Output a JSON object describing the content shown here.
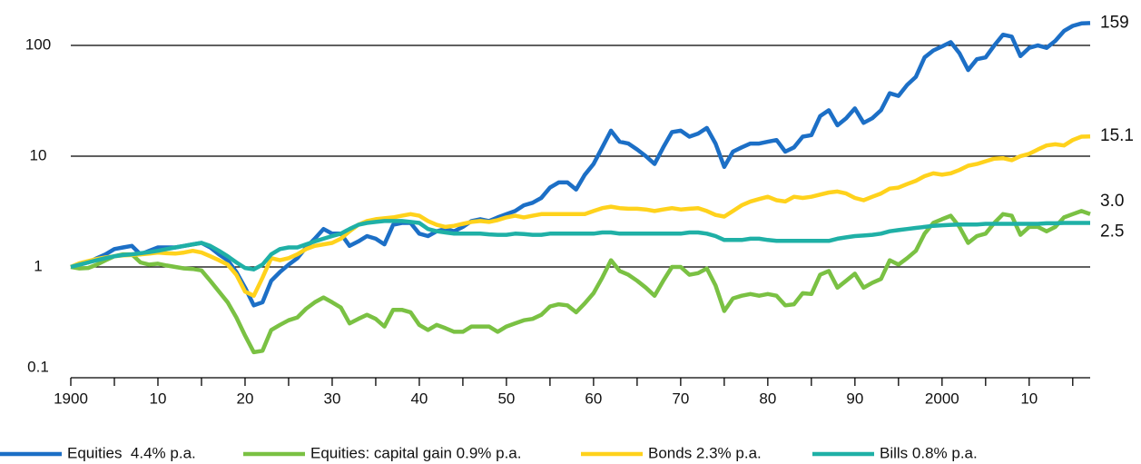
{
  "chart_data": {
    "type": "line",
    "log_y": true,
    "grid": true,
    "x": [
      1900,
      1901,
      1902,
      1903,
      1904,
      1905,
      1906,
      1907,
      1908,
      1909,
      1910,
      1911,
      1912,
      1913,
      1914,
      1915,
      1916,
      1917,
      1918,
      1919,
      1920,
      1921,
      1922,
      1923,
      1924,
      1925,
      1926,
      1927,
      1928,
      1929,
      1930,
      1931,
      1932,
      1933,
      1934,
      1935,
      1936,
      1937,
      1938,
      1939,
      1940,
      1941,
      1942,
      1943,
      1944,
      1945,
      1946,
      1947,
      1948,
      1949,
      1950,
      1951,
      1952,
      1953,
      1954,
      1955,
      1956,
      1957,
      1958,
      1959,
      1960,
      1961,
      1962,
      1963,
      1964,
      1965,
      1966,
      1967,
      1968,
      1969,
      1970,
      1971,
      1972,
      1973,
      1974,
      1975,
      1976,
      1977,
      1978,
      1979,
      1980,
      1981,
      1982,
      1983,
      1984,
      1985,
      1986,
      1987,
      1988,
      1989,
      1990,
      1991,
      1992,
      1993,
      1994,
      1995,
      1996,
      1997,
      1998,
      1999,
      2000,
      2001,
      2002,
      2003,
      2004,
      2005,
      2006,
      2007,
      2008,
      2009,
      2010,
      2011,
      2012,
      2013,
      2014,
      2015,
      2016,
      2017
    ],
    "xlim": [
      1900,
      2017
    ],
    "xticks": [
      1900,
      {
        "value": 1910,
        "label": "10"
      },
      {
        "value": 1920,
        "label": "20"
      },
      {
        "value": 1930,
        "label": "30"
      },
      {
        "value": 1940,
        "label": "40"
      },
      {
        "value": 1950,
        "label": "50"
      },
      {
        "value": 1960,
        "label": "60"
      },
      {
        "value": 1970,
        "label": "70"
      },
      {
        "value": 1980,
        "label": "80"
      },
      {
        "value": 1990,
        "label": "90"
      },
      2000,
      {
        "value": 2010,
        "label": "10"
      }
    ],
    "xminorticks": [
      1905,
      1915,
      1925,
      1935,
      1945,
      1955,
      1965,
      1975,
      1985,
      1995,
      2005,
      2015
    ],
    "ylim": [
      0.1,
      250
    ],
    "yticks": [
      0.1,
      1,
      10,
      100
    ],
    "series": [
      {
        "name": "Equities  4.4% p.a.",
        "color": "#1c6fc6",
        "end_label": "159",
        "values": [
          1,
          1.05,
          1.1,
          1.2,
          1.3,
          1.45,
          1.5,
          1.55,
          1.3,
          1.4,
          1.5,
          1.5,
          1.5,
          1.55,
          1.6,
          1.65,
          1.5,
          1.3,
          1.15,
          0.9,
          0.65,
          0.45,
          0.48,
          0.75,
          0.9,
          1.05,
          1.2,
          1.5,
          1.8,
          2.2,
          2.0,
          2.0,
          1.55,
          1.7,
          1.9,
          1.8,
          1.6,
          2.4,
          2.5,
          2.5,
          2.0,
          1.9,
          2.1,
          2.2,
          2.1,
          2.3,
          2.6,
          2.7,
          2.6,
          2.8,
          3.0,
          3.2,
          3.6,
          3.8,
          4.2,
          5.2,
          5.8,
          5.8,
          5.0,
          6.8,
          8.5,
          12,
          17,
          13.5,
          13,
          11.5,
          10,
          8.5,
          12,
          16.5,
          17,
          15,
          16,
          18,
          13,
          8,
          11,
          12,
          13,
          13,
          13.5,
          14,
          11,
          12,
          15,
          15.5,
          23,
          26,
          19,
          22,
          27,
          20,
          22,
          26,
          37,
          35,
          44,
          52,
          78,
          90,
          98,
          107,
          85,
          60,
          75,
          78,
          100,
          125,
          120,
          80,
          95,
          100,
          95,
          110,
          135,
          150,
          158,
          159
        ]
      },
      {
        "name": "Equities: capital gain 0.9% p.a.",
        "color": "#7ac143",
        "end_label": "3.0",
        "values": [
          1,
          0.97,
          0.98,
          1.05,
          1.15,
          1.25,
          1.3,
          1.3,
          1.1,
          1.05,
          1.07,
          1.03,
          1.0,
          0.97,
          0.96,
          0.93,
          0.75,
          0.6,
          0.48,
          0.35,
          0.24,
          0.17,
          0.175,
          0.27,
          0.3,
          0.33,
          0.35,
          0.42,
          0.48,
          0.53,
          0.48,
          0.43,
          0.31,
          0.34,
          0.37,
          0.34,
          0.29,
          0.41,
          0.41,
          0.39,
          0.3,
          0.27,
          0.3,
          0.28,
          0.26,
          0.26,
          0.29,
          0.29,
          0.29,
          0.26,
          0.29,
          0.31,
          0.33,
          0.34,
          0.37,
          0.44,
          0.46,
          0.45,
          0.39,
          0.47,
          0.58,
          0.8,
          1.15,
          0.92,
          0.85,
          0.75,
          0.65,
          0.55,
          0.75,
          1.0,
          1.0,
          0.85,
          0.88,
          0.97,
          0.68,
          0.4,
          0.52,
          0.55,
          0.57,
          0.55,
          0.57,
          0.55,
          0.45,
          0.46,
          0.58,
          0.57,
          0.85,
          0.92,
          0.65,
          0.75,
          0.87,
          0.65,
          0.72,
          0.78,
          1.15,
          1.05,
          1.2,
          1.4,
          2.0,
          2.5,
          2.7,
          2.9,
          2.3,
          1.65,
          1.9,
          2.0,
          2.5,
          3.0,
          2.9,
          1.95,
          2.3,
          2.3,
          2.1,
          2.3,
          2.8,
          3.0,
          3.2,
          3
        ]
      },
      {
        "name": "Bonds 2.3% p.a.",
        "color": "#ffd21c",
        "end_label": "15.1",
        "values": [
          1,
          1.08,
          1.13,
          1.18,
          1.22,
          1.25,
          1.27,
          1.28,
          1.3,
          1.32,
          1.35,
          1.33,
          1.32,
          1.35,
          1.4,
          1.35,
          1.25,
          1.15,
          1.05,
          0.85,
          0.6,
          0.55,
          0.8,
          1.2,
          1.15,
          1.2,
          1.3,
          1.45,
          1.55,
          1.6,
          1.65,
          1.8,
          2.1,
          2.4,
          2.6,
          2.7,
          2.75,
          2.8,
          2.9,
          3.0,
          2.9,
          2.6,
          2.4,
          2.3,
          2.35,
          2.45,
          2.55,
          2.6,
          2.55,
          2.65,
          2.8,
          2.9,
          2.8,
          2.9,
          3.0,
          3.0,
          3.0,
          3.0,
          3.0,
          3.0,
          3.2,
          3.4,
          3.5,
          3.4,
          3.35,
          3.35,
          3.3,
          3.2,
          3.3,
          3.4,
          3.3,
          3.35,
          3.4,
          3.2,
          2.95,
          2.85,
          3.2,
          3.6,
          3.9,
          4.1,
          4.3,
          4.0,
          3.9,
          4.3,
          4.2,
          4.3,
          4.5,
          4.7,
          4.8,
          4.6,
          4.2,
          4.0,
          4.3,
          4.6,
          5.1,
          5.2,
          5.6,
          6.0,
          6.6,
          7.0,
          6.8,
          7.0,
          7.5,
          8.2,
          8.5,
          9.0,
          9.5,
          9.6,
          9.2,
          10.0,
          10.5,
          11.5,
          12.5,
          12.8,
          12.5,
          14.0,
          15.0,
          15.1
        ]
      },
      {
        "name": "Bills 0.8% p.a.",
        "color": "#1fb0a6",
        "end_label": "2.5",
        "values": [
          1,
          1.05,
          1.1,
          1.15,
          1.2,
          1.25,
          1.28,
          1.3,
          1.33,
          1.36,
          1.4,
          1.45,
          1.5,
          1.55,
          1.6,
          1.65,
          1.55,
          1.4,
          1.25,
          1.1,
          0.98,
          0.95,
          1.05,
          1.3,
          1.45,
          1.5,
          1.5,
          1.6,
          1.7,
          1.8,
          1.9,
          2.0,
          2.2,
          2.4,
          2.5,
          2.55,
          2.6,
          2.6,
          2.6,
          2.55,
          2.5,
          2.2,
          2.1,
          2.05,
          2.0,
          2.0,
          2.0,
          2.0,
          1.97,
          1.95,
          1.95,
          2.0,
          1.98,
          1.95,
          1.95,
          2.0,
          2.0,
          2.0,
          2.0,
          2.0,
          2.0,
          2.05,
          2.05,
          2.0,
          2.0,
          2.0,
          2.0,
          2.0,
          2.0,
          2.0,
          2.0,
          2.05,
          2.05,
          2.0,
          1.9,
          1.75,
          1.75,
          1.75,
          1.8,
          1.8,
          1.75,
          1.72,
          1.72,
          1.72,
          1.72,
          1.72,
          1.72,
          1.72,
          1.8,
          1.85,
          1.9,
          1.92,
          1.95,
          2.0,
          2.1,
          2.15,
          2.2,
          2.25,
          2.3,
          2.35,
          2.38,
          2.4,
          2.42,
          2.42,
          2.42,
          2.45,
          2.45,
          2.45,
          2.45,
          2.45,
          2.45,
          2.45,
          2.48,
          2.48,
          2.5,
          2.5,
          2.5,
          2.5
        ]
      }
    ]
  }
}
